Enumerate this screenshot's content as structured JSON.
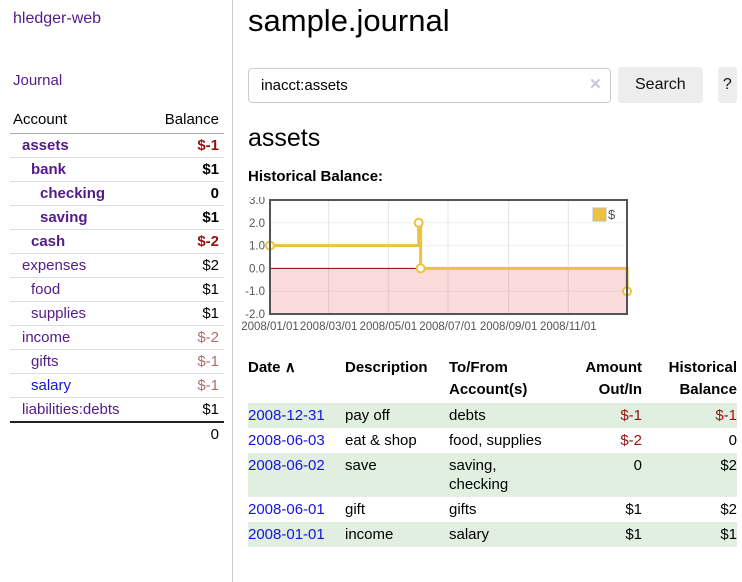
{
  "app": {
    "brand": "hledger-web"
  },
  "sidebar": {
    "journal_label": "Journal",
    "accounts_table": {
      "headers": {
        "account": "Account",
        "balance": "Balance"
      },
      "rows": [
        {
          "name": "assets",
          "depth": 1,
          "bold": true,
          "balance": "$-1"
        },
        {
          "name": "bank",
          "depth": 2,
          "bold": true,
          "balance": "$1"
        },
        {
          "name": "checking",
          "depth": 3,
          "bold": true,
          "balance": "0"
        },
        {
          "name": "saving",
          "depth": 3,
          "bold": true,
          "balance": "$1"
        },
        {
          "name": "cash",
          "depth": 2,
          "bold": true,
          "balance": "$-2"
        },
        {
          "name": "expenses",
          "depth": 1,
          "bold": false,
          "balance": "$2"
        },
        {
          "name": "food",
          "depth": 2,
          "bold": false,
          "balance": "$1"
        },
        {
          "name": "supplies",
          "depth": 2,
          "bold": false,
          "balance": "$1"
        },
        {
          "name": "income",
          "depth": 1,
          "bold": false,
          "balance": "$-2"
        },
        {
          "name": "gifts",
          "depth": 2,
          "bold": false,
          "balance": "$-1"
        },
        {
          "name": "salary",
          "depth": 2,
          "bold": false,
          "balance": "$-1",
          "unvisited": true
        },
        {
          "name": "liabilities:debts",
          "depth": 1,
          "bold": false,
          "balance": "$1"
        }
      ],
      "total": "0"
    }
  },
  "main": {
    "title": "sample.journal",
    "search": {
      "value": "inacct:assets",
      "clear_icon": "×",
      "button_label": "Search",
      "help_label": "?"
    },
    "account_heading": "assets",
    "chart_label": "Historical Balance:",
    "register_table": {
      "headers": {
        "date": "Date",
        "sort_icon": "∧",
        "description": "Description",
        "tofrom_line1": "To/From",
        "tofrom_line2": "Account(s)",
        "amount_line1": "Amount",
        "amount_line2": "Out/In",
        "balance_line1": "Historical",
        "balance_line2": "Balance"
      },
      "rows": [
        {
          "date": "2008-12-31",
          "description": "pay off",
          "accounts": "debts",
          "amount": "$-1",
          "balance": "$-1"
        },
        {
          "date": "2008-06-03",
          "description": "eat & shop",
          "accounts": "food, supplies",
          "amount": "$-2",
          "balance": "0"
        },
        {
          "date": "2008-06-02",
          "description": "save",
          "accounts": "saving, checking",
          "amount": "0",
          "balance": "$2"
        },
        {
          "date": "2008-06-01",
          "description": "gift",
          "accounts": "gifts",
          "amount": "$1",
          "balance": "$2"
        },
        {
          "date": "2008-01-01",
          "description": "income",
          "accounts": "salary",
          "amount": "$1",
          "balance": "$1"
        }
      ]
    }
  },
  "chart_data": {
    "type": "step-line",
    "title": "Historical Balance:",
    "series": [
      {
        "name": "$",
        "color": "#edc240",
        "points": [
          [
            "2008-01-01",
            1.0
          ],
          [
            "2008-06-01",
            2.0
          ],
          [
            "2008-06-03",
            0.0
          ],
          [
            "2008-12-31",
            -1.0
          ]
        ]
      }
    ],
    "x_range": [
      "2008-01-01",
      "2008-12-31"
    ],
    "x_ticks": [
      "2008/01/01",
      "2008/03/01",
      "2008/05/01",
      "2008/07/01",
      "2008/09/01",
      "2008/11/01"
    ],
    "y_ticks": [
      3.0,
      2.0,
      1.0,
      0.0,
      -1.0,
      -2.0
    ],
    "ylim": [
      -2.0,
      3.0
    ],
    "legend": "$",
    "legend_position": "top-right",
    "grid": true
  },
  "colors": {
    "link_purple": "#551A8B",
    "link_blue": "#1414dd",
    "negative_strong": "#971111",
    "negative_muted": "#b36b6b",
    "stripe_green": "#e0efdf",
    "chart_line": "#edc240",
    "chart_negative_region": "#fbdbdb",
    "chart_zero_line": "#8b0000",
    "chart_border": "#545454",
    "tick_text": "#545454"
  }
}
